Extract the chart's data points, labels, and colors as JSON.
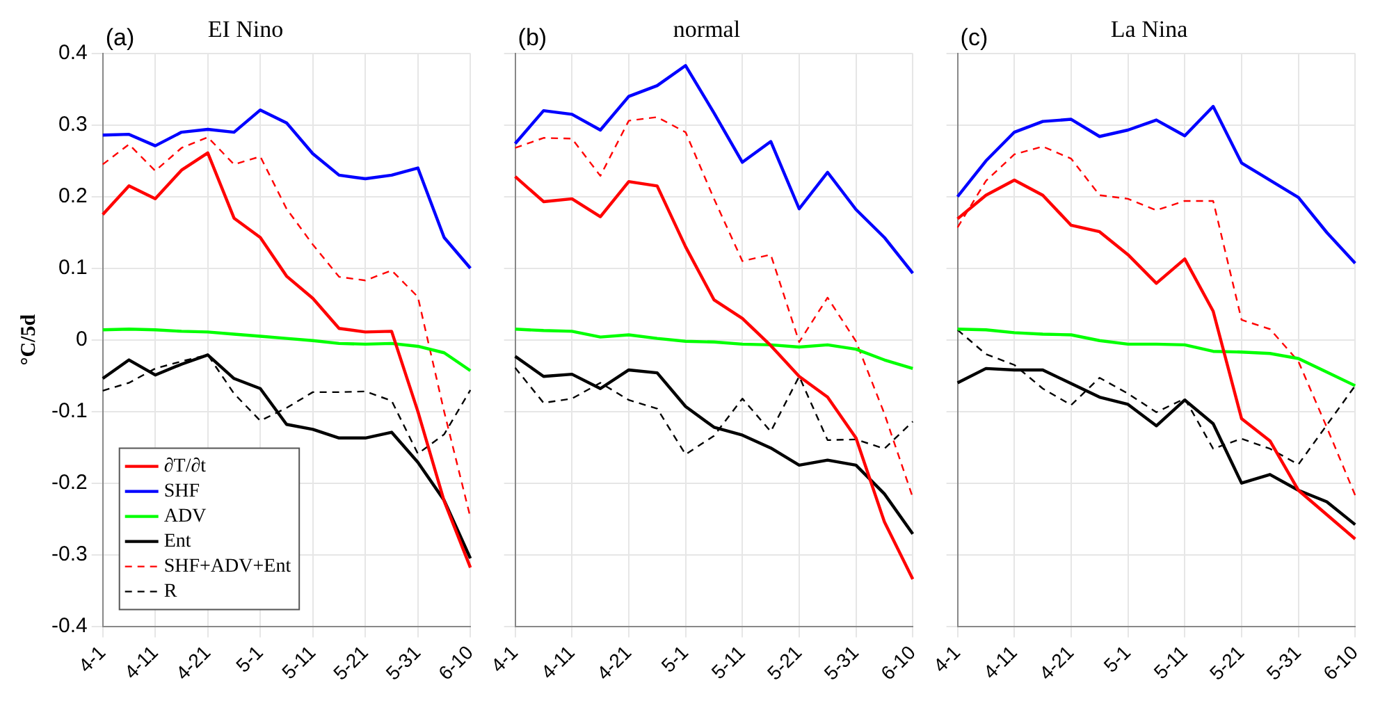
{
  "chart_data": [
    {
      "type": "line",
      "title": "EI Nino",
      "ylabel": "°C/5d",
      "annotations": [
        "(a)"
      ],
      "categories": [
        "4-1",
        null,
        "4-11",
        null,
        "4-21",
        null,
        "5-1",
        null,
        "5-11",
        null,
        "5-21",
        null,
        "5-31",
        null,
        "6-10"
      ],
      "ylim": [
        -0.4,
        0.4
      ],
      "yticks": [
        -0.4,
        -0.3,
        -0.2,
        -0.1,
        0,
        0.1,
        0.2,
        0.3,
        0.4
      ],
      "grid": true,
      "legend": "bottom left",
      "marker": "none",
      "series": [
        {
          "name": "∂T/∂t",
          "color": "#ff0000",
          "values": [
            0.175,
            0.215,
            0.197,
            0.237,
            0.261,
            0.17,
            0.143,
            0.089,
            0.058,
            0.016,
            0.011,
            0.012,
            -0.1,
            -0.225,
            -0.318
          ]
        },
        {
          "name": "SHF",
          "color": "#0000ff",
          "values": [
            0.286,
            0.287,
            0.271,
            0.29,
            0.294,
            0.29,
            0.321,
            0.303,
            0.26,
            0.23,
            0.225,
            0.23,
            0.24,
            0.143,
            0.1
          ]
        },
        {
          "name": "ADV",
          "color": "#00ff00",
          "values": [
            0.014,
            0.015,
            0.014,
            0.012,
            0.011,
            0.008,
            0.005,
            0.002,
            -0.001,
            -0.005,
            -0.006,
            -0.005,
            -0.009,
            -0.018,
            -0.043
          ]
        },
        {
          "name": "Ent",
          "color": "#000000",
          "values": [
            -0.054,
            -0.028,
            -0.049,
            -0.034,
            -0.021,
            -0.054,
            -0.068,
            -0.118,
            -0.125,
            -0.137,
            -0.137,
            -0.129,
            -0.171,
            -0.224,
            -0.305
          ]
        },
        {
          "name": "SHF+ADV+Ent",
          "color": "#ff0000",
          "line_style": "dashed",
          "values": [
            0.245,
            0.273,
            0.236,
            0.268,
            0.283,
            0.245,
            0.256,
            0.183,
            0.133,
            0.088,
            0.083,
            0.097,
            0.06,
            -0.1,
            -0.248
          ]
        },
        {
          "name": "R",
          "color": "#000000",
          "line_style": "dashed",
          "values": [
            -0.071,
            -0.06,
            -0.04,
            -0.03,
            -0.021,
            -0.075,
            -0.113,
            -0.095,
            -0.073,
            -0.073,
            -0.072,
            -0.085,
            -0.159,
            -0.132,
            -0.07
          ]
        }
      ]
    },
    {
      "type": "line",
      "title": "normal",
      "annotations": [
        "(b)"
      ],
      "categories": [
        "4-1",
        null,
        "4-11",
        null,
        "4-21",
        null,
        "5-1",
        null,
        "5-11",
        null,
        "5-21",
        null,
        "5-31",
        null,
        "6-10"
      ],
      "ylim": [
        -0.4,
        0.4
      ],
      "yticks": [
        -0.4,
        -0.3,
        -0.2,
        -0.1,
        0,
        0.1,
        0.2,
        0.3,
        0.4
      ],
      "grid": true,
      "tick_labels": "x",
      "marker": "none",
      "series": [
        {
          "color": "#ff0000",
          "values": [
            0.228,
            0.193,
            0.197,
            0.172,
            0.221,
            0.215,
            0.13,
            0.056,
            0.03,
            -0.008,
            -0.051,
            -0.08,
            -0.137,
            -0.254,
            -0.334
          ]
        },
        {
          "color": "#0000ff",
          "values": [
            0.274,
            0.32,
            0.315,
            0.293,
            0.34,
            0.355,
            0.383,
            0.317,
            0.248,
            0.277,
            0.183,
            0.234,
            0.182,
            0.143,
            0.093
          ]
        },
        {
          "color": "#00ff00",
          "values": [
            0.015,
            0.013,
            0.012,
            0.004,
            0.007,
            0.002,
            -0.002,
            -0.003,
            -0.006,
            -0.007,
            -0.01,
            -0.007,
            -0.013,
            -0.028,
            -0.04
          ]
        },
        {
          "color": "#000000",
          "values": [
            -0.023,
            -0.051,
            -0.048,
            -0.068,
            -0.042,
            -0.046,
            -0.093,
            -0.122,
            -0.133,
            -0.151,
            -0.175,
            -0.168,
            -0.175,
            -0.215,
            -0.271
          ]
        },
        {
          "color": "#ff0000",
          "line_style": "dashed",
          "values": [
            0.268,
            0.282,
            0.281,
            0.229,
            0.306,
            0.311,
            0.29,
            0.197,
            0.11,
            0.119,
            -0.003,
            0.059,
            -0.002,
            -0.103,
            -0.22
          ]
        },
        {
          "color": "#000000",
          "line_style": "dashed",
          "values": [
            -0.039,
            -0.088,
            -0.082,
            -0.06,
            -0.084,
            -0.096,
            -0.16,
            -0.134,
            -0.082,
            -0.128,
            -0.051,
            -0.14,
            -0.139,
            -0.152,
            -0.114
          ]
        }
      ]
    },
    {
      "type": "line",
      "title": "La Nina",
      "annotations": [
        "(c)"
      ],
      "categories": [
        "4-1",
        null,
        "4-11",
        null,
        "4-21",
        null,
        "5-1",
        null,
        "5-11",
        null,
        "5-21",
        null,
        "5-31",
        null,
        "6-10"
      ],
      "ylim": [
        -0.4,
        0.4
      ],
      "yticks": [
        -0.4,
        -0.3,
        -0.2,
        -0.1,
        0,
        0.1,
        0.2,
        0.3,
        0.4
      ],
      "grid": true,
      "tick_labels": "x",
      "marker": "none",
      "series": [
        {
          "color": "#ff0000",
          "values": [
            0.169,
            0.202,
            0.223,
            0.202,
            0.16,
            0.151,
            0.119,
            0.079,
            0.113,
            0.04,
            -0.11,
            -0.141,
            -0.21,
            -0.244,
            -0.278
          ]
        },
        {
          "color": "#0000ff",
          "values": [
            0.2,
            0.25,
            0.29,
            0.305,
            0.308,
            0.284,
            0.293,
            0.307,
            0.285,
            0.326,
            0.247,
            0.223,
            0.199,
            0.15,
            0.107
          ]
        },
        {
          "color": "#00ff00",
          "values": [
            0.015,
            0.014,
            0.01,
            0.008,
            0.007,
            -0.001,
            -0.006,
            -0.006,
            -0.007,
            -0.016,
            -0.017,
            -0.019,
            -0.026,
            -0.045,
            -0.064
          ]
        },
        {
          "color": "#000000",
          "values": [
            -0.06,
            -0.04,
            -0.042,
            -0.042,
            -0.061,
            -0.08,
            -0.09,
            -0.12,
            -0.084,
            -0.117,
            -0.2,
            -0.188,
            -0.21,
            -0.226,
            -0.258
          ]
        },
        {
          "color": "#ff0000",
          "line_style": "dashed",
          "values": [
            0.157,
            0.222,
            0.259,
            0.27,
            0.253,
            0.202,
            0.197,
            0.181,
            0.194,
            0.194,
            0.028,
            0.015,
            -0.03,
            -0.122,
            -0.217
          ]
        },
        {
          "color": "#000000",
          "line_style": "dashed",
          "values": [
            0.014,
            -0.02,
            -0.035,
            -0.068,
            -0.091,
            -0.053,
            -0.075,
            -0.101,
            -0.082,
            -0.152,
            -0.138,
            -0.152,
            -0.174,
            -0.119,
            -0.064
          ]
        }
      ]
    }
  ]
}
